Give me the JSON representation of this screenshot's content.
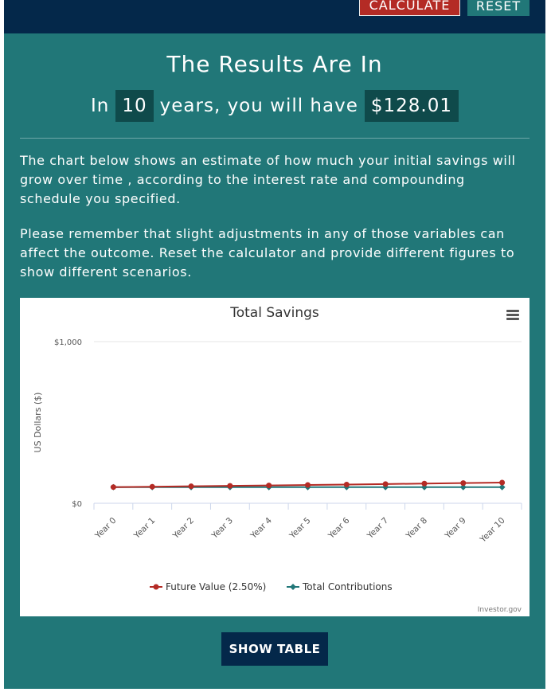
{
  "toolbar": {
    "calculate_label": "CALCULATE",
    "reset_label": "RESET"
  },
  "results": {
    "heading": "The Results Are In",
    "prefix": "In",
    "years": "10",
    "middle": "years, you will have",
    "amount": "$128.01"
  },
  "paragraphs": [
    "The chart below shows an estimate of how much your initial savings will grow over time , according to the interest rate and compounding schedule you specified.",
    "Please remember that slight adjustments in any of those variables can affect the outcome. Reset the calculator and provide different figures to show different scenarios."
  ],
  "chart_data": {
    "type": "line",
    "title": "Total Savings",
    "ylabel": "US Dollars ($)",
    "xlabel": "",
    "ylim": [
      0,
      1000
    ],
    "ytick_labels": [
      "$0",
      "$1,000"
    ],
    "categories": [
      "Year 0",
      "Year 1",
      "Year 2",
      "Year 3",
      "Year 4",
      "Year 5",
      "Year 6",
      "Year 7",
      "Year 8",
      "Year 9",
      "Year 10"
    ],
    "series": [
      {
        "name": "Future Value (2.50%)",
        "color": "#b42b25",
        "marker": "circle",
        "values": [
          100,
          102.5,
          105.06,
          107.69,
          110.38,
          113.14,
          115.97,
          118.87,
          121.84,
          124.89,
          128.01
        ]
      },
      {
        "name": "Total Contributions",
        "color": "#217778",
        "marker": "diamond",
        "values": [
          100,
          100,
          100,
          100,
          100,
          100,
          100,
          100,
          100,
          100,
          100
        ]
      }
    ],
    "legend_position": "bottom",
    "credit": "Investor.gov",
    "grid": true
  },
  "show_table_label": "SHOW TABLE",
  "icons": {
    "chart_menu": "hamburger-menu-icon"
  }
}
